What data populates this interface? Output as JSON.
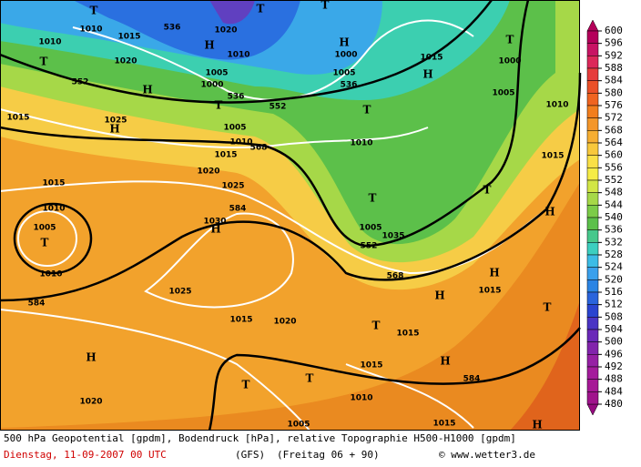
{
  "caption": {
    "line1": "500 hPa Geopotential [gpdm], Bodendruck [hPa], relative Topographie H500-H1000 [gpdm]",
    "run": "Dienstag, 11-09-2007  00 UTC",
    "model": "(GFS)",
    "forecast": "(Freitag 06 + 90)",
    "source": "© www.wetter3.de"
  },
  "legend": {
    "levels": [
      600,
      596,
      592,
      588,
      584,
      580,
      576,
      572,
      568,
      564,
      560,
      556,
      552,
      548,
      544,
      540,
      536,
      532,
      528,
      524,
      520,
      516,
      512,
      508,
      504,
      500,
      496,
      492,
      488,
      484,
      480
    ],
    "colors": [
      "#b4005a",
      "#c81464",
      "#dc285a",
      "#e63c3c",
      "#eb5028",
      "#f06420",
      "#f27e1e",
      "#f4962a",
      "#f6ae32",
      "#f8c83c",
      "#fae046",
      "#f6ec46",
      "#d2e646",
      "#a6d848",
      "#7ccc48",
      "#5cc04a",
      "#46c88c",
      "#3ccfc0",
      "#3cbce6",
      "#3aa0ec",
      "#2a84e4",
      "#2a64dc",
      "#2a44d0",
      "#4a34c4",
      "#6a28b8",
      "#8224ac",
      "#9620a4",
      "#a41c9c",
      "#a61896",
      "#a0148c",
      "#960a80"
    ]
  },
  "map": {
    "labels": [
      "T",
      "T",
      "T",
      "536",
      "1010",
      "1015",
      "H",
      "1020",
      "1010",
      "1010",
      "T",
      "1020",
      "552",
      "H",
      "1005",
      "1000",
      "536",
      "T",
      "552",
      "H",
      "1000",
      "1005",
      "536",
      "T",
      "1015",
      "H",
      "T",
      "1000",
      "1005",
      "1010",
      "1015",
      "1025",
      "H",
      "1005",
      "1010",
      "568",
      "1015",
      "1010",
      "1015",
      "1020",
      "1015",
      "1025",
      "T",
      "T",
      "1010",
      "584",
      "1030",
      "H",
      "1005",
      "T",
      "1005",
      "1035",
      "552",
      "H",
      "1010",
      "568",
      "H",
      "1025",
      "584",
      "H",
      "1015",
      "T",
      "1015",
      "1020",
      "T",
      "1015",
      "H",
      "H",
      "1015",
      "T",
      "T",
      "584",
      "1020",
      "1010",
      "1015",
      "H",
      "1005"
    ]
  }
}
